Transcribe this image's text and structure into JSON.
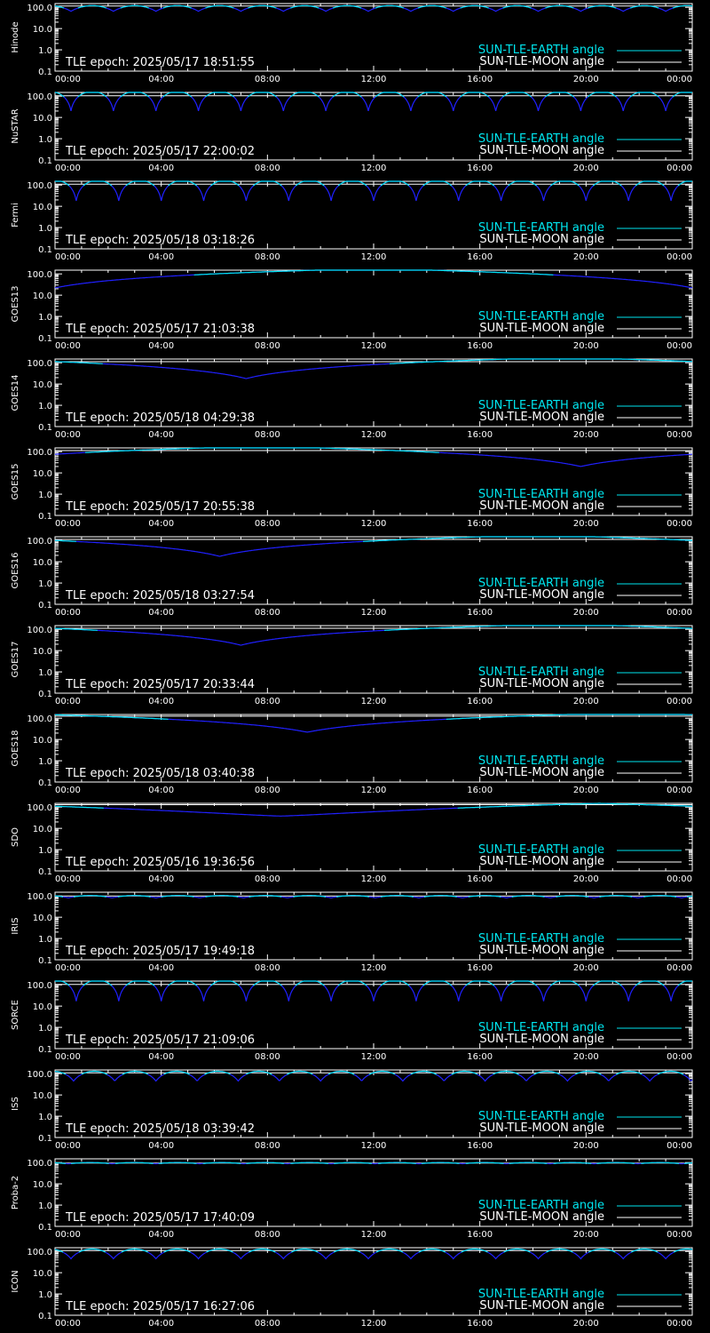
{
  "colors": {
    "background": "#000000",
    "axes": "#ffffff",
    "earth_angle": "#00e5ee",
    "moon_angle": "#ffffff",
    "dip_curve": "#2020ff"
  },
  "chart_data": [
    {
      "type": "line",
      "satellite": "Hinode",
      "epoch_label": "TLE epoch: 2025/05/17 18:51:55",
      "scale": "log",
      "ylim": [
        0.1,
        150
      ],
      "yticks": [
        "100.0",
        "10.0",
        "1.0",
        "0.1"
      ],
      "xlim": [
        0,
        24
      ],
      "xticks": [
        "00:00",
        "04:00",
        "08:00",
        "12:00",
        "16:00",
        "20:00",
        "00:00"
      ],
      "earth": {
        "kind": "orbit",
        "period_h": 1.6,
        "phase_h": 0.6,
        "max": 120,
        "min": 65
      },
      "moon": {
        "constant": 115
      },
      "legend": [
        "SUN-TLE-EARTH angle",
        "SUN-TLE-MOON angle"
      ]
    },
    {
      "type": "line",
      "satellite": "NuSTAR",
      "epoch_label": "TLE epoch: 2025/05/17 22:00:02",
      "scale": "log",
      "ylim": [
        0.1,
        150
      ],
      "yticks": [
        "100.0",
        "10.0",
        "1.0",
        "0.1"
      ],
      "xlim": [
        0,
        24
      ],
      "xticks": [
        "00:00",
        "04:00",
        "08:00",
        "12:00",
        "16:00",
        "20:00",
        "00:00"
      ],
      "earth": {
        "kind": "orbit",
        "period_h": 1.6,
        "phase_h": 0.6,
        "max": 165,
        "min": 20
      },
      "moon": {
        "constant": 105
      },
      "legend": [
        "SUN-TLE-EARTH angle",
        "SUN-TLE-MOON angle"
      ]
    },
    {
      "type": "line",
      "satellite": "Fermi",
      "epoch_label": "TLE epoch: 2025/05/18 03:18:26",
      "scale": "log",
      "ylim": [
        0.1,
        150
      ],
      "yticks": [
        "100.0",
        "10.0",
        "1.0",
        "0.1"
      ],
      "xlim": [
        0,
        24
      ],
      "xticks": [
        "00:00",
        "04:00",
        "08:00",
        "12:00",
        "16:00",
        "20:00",
        "00:00"
      ],
      "earth": {
        "kind": "orbit",
        "period_h": 1.6,
        "phase_h": 0.8,
        "max": 165,
        "min": 18
      },
      "moon": {
        "constant": 110
      },
      "legend": [
        "SUN-TLE-EARTH angle",
        "SUN-TLE-MOON angle"
      ]
    },
    {
      "type": "line",
      "satellite": "GOES13",
      "epoch_label": "TLE epoch: 2025/05/17 21:03:38",
      "scale": "log",
      "ylim": [
        0.1,
        150
      ],
      "yticks": [
        "100.0",
        "10.0",
        "1.0",
        "0.1"
      ],
      "xlim": [
        0,
        24
      ],
      "xticks": [
        "00:00",
        "04:00",
        "08:00",
        "12:00",
        "16:00",
        "20:00",
        "00:00"
      ],
      "earth": {
        "kind": "geo",
        "min_t": 24,
        "min": 22,
        "max": 178
      },
      "moon": {
        "constant": 150
      },
      "legend": [
        "SUN-TLE-EARTH angle",
        "SUN-TLE-MOON angle"
      ]
    },
    {
      "type": "line",
      "satellite": "GOES14",
      "epoch_label": "TLE epoch: 2025/05/18 04:29:38",
      "scale": "log",
      "ylim": [
        0.1,
        150
      ],
      "yticks": [
        "100.0",
        "10.0",
        "1.0",
        "0.1"
      ],
      "xlim": [
        0,
        24
      ],
      "xticks": [
        "00:00",
        "04:00",
        "08:00",
        "12:00",
        "16:00",
        "20:00",
        "00:00"
      ],
      "earth": {
        "kind": "geo",
        "min_t": 7.2,
        "min": 18,
        "max": 178
      },
      "moon": {
        "constant": 112
      },
      "legend": [
        "SUN-TLE-EARTH angle",
        "SUN-TLE-MOON angle"
      ]
    },
    {
      "type": "line",
      "satellite": "GOES15",
      "epoch_label": "TLE epoch: 2025/05/17 20:55:38",
      "scale": "log",
      "ylim": [
        0.1,
        150
      ],
      "yticks": [
        "100.0",
        "10.0",
        "1.0",
        "0.1"
      ],
      "xlim": [
        0,
        24
      ],
      "xticks": [
        "00:00",
        "04:00",
        "08:00",
        "12:00",
        "16:00",
        "20:00",
        "00:00"
      ],
      "earth": {
        "kind": "geo",
        "min_t": 19.8,
        "min": 20,
        "max": 178
      },
      "moon": {
        "constant": 112
      },
      "legend": [
        "SUN-TLE-EARTH angle",
        "SUN-TLE-MOON angle"
      ]
    },
    {
      "type": "line",
      "satellite": "GOES16",
      "epoch_label": "TLE epoch: 2025/05/18 03:27:54",
      "scale": "log",
      "ylim": [
        0.1,
        150
      ],
      "yticks": [
        "100.0",
        "10.0",
        "1.0",
        "0.1"
      ],
      "xlim": [
        0,
        24
      ],
      "xticks": [
        "00:00",
        "04:00",
        "08:00",
        "12:00",
        "16:00",
        "20:00",
        "00:00"
      ],
      "earth": {
        "kind": "geo",
        "min_t": 6.2,
        "min": 18,
        "max": 178
      },
      "moon": {
        "constant": 112
      },
      "legend": [
        "SUN-TLE-EARTH angle",
        "SUN-TLE-MOON angle"
      ]
    },
    {
      "type": "line",
      "satellite": "GOES17",
      "epoch_label": "TLE epoch: 2025/05/17 20:33:44",
      "scale": "log",
      "ylim": [
        0.1,
        150
      ],
      "yticks": [
        "100.0",
        "10.0",
        "1.0",
        "0.1"
      ],
      "xlim": [
        0,
        24
      ],
      "xticks": [
        "00:00",
        "04:00",
        "08:00",
        "12:00",
        "16:00",
        "20:00",
        "00:00"
      ],
      "earth": {
        "kind": "geo",
        "min_t": 7.0,
        "min": 18,
        "max": 178
      },
      "moon": {
        "constant": 112
      },
      "legend": [
        "SUN-TLE-EARTH angle",
        "SUN-TLE-MOON angle"
      ]
    },
    {
      "type": "line",
      "satellite": "GOES18",
      "epoch_label": "TLE epoch: 2025/05/18 03:40:38",
      "scale": "log",
      "ylim": [
        0.1,
        150
      ],
      "yticks": [
        "100.0",
        "10.0",
        "1.0",
        "0.1"
      ],
      "xlim": [
        0,
        24
      ],
      "xticks": [
        "00:00",
        "04:00",
        "08:00",
        "12:00",
        "16:00",
        "20:00",
        "00:00"
      ],
      "earth": {
        "kind": "geo",
        "min_t": 9.5,
        "min": 22,
        "max": 178
      },
      "moon": {
        "constant": 125
      },
      "legend": [
        "SUN-TLE-EARTH angle",
        "SUN-TLE-MOON angle"
      ]
    },
    {
      "type": "line",
      "satellite": "SDO",
      "epoch_label": "TLE epoch: 2025/05/16 19:36:56",
      "scale": "log",
      "ylim": [
        0.1,
        150
      ],
      "yticks": [
        "100.0",
        "10.0",
        "1.0",
        "0.1"
      ],
      "xlim": [
        0,
        24
      ],
      "xticks": [
        "00:00",
        "04:00",
        "08:00",
        "12:00",
        "16:00",
        "20:00",
        "00:00"
      ],
      "earth": {
        "kind": "smooth",
        "min_t": 8.5,
        "min": 38,
        "max": 150
      },
      "moon": {
        "constant": 130
      },
      "legend": [
        "SUN-TLE-EARTH angle",
        "SUN-TLE-MOON angle"
      ]
    },
    {
      "type": "line",
      "satellite": "IRIS",
      "epoch_label": "TLE epoch: 2025/05/17 19:49:18",
      "scale": "log",
      "ylim": [
        0.1,
        150
      ],
      "yticks": [
        "100.0",
        "10.0",
        "1.0",
        "0.1"
      ],
      "xlim": [
        0,
        24
      ],
      "xticks": [
        "00:00",
        "04:00",
        "08:00",
        "12:00",
        "16:00",
        "20:00",
        "00:00"
      ],
      "earth": {
        "kind": "orbit",
        "period_h": 1.65,
        "phase_h": 0.5,
        "max": 105,
        "min": 82
      },
      "moon": {
        "constant": 100
      },
      "legend": [
        "SUN-TLE-EARTH angle",
        "SUN-TLE-MOON angle"
      ]
    },
    {
      "type": "line",
      "satellite": "SORCE",
      "epoch_label": "TLE epoch: 2025/05/17 21:09:06",
      "scale": "log",
      "ylim": [
        0.1,
        150
      ],
      "yticks": [
        "100.0",
        "10.0",
        "1.0",
        "0.1"
      ],
      "xlim": [
        0,
        24
      ],
      "xticks": [
        "00:00",
        "04:00",
        "08:00",
        "12:00",
        "16:00",
        "20:00",
        "00:00"
      ],
      "earth": {
        "kind": "orbit",
        "period_h": 1.6,
        "phase_h": 0.8,
        "max": 165,
        "min": 17
      },
      "moon": {
        "constant": 105
      },
      "legend": [
        "SUN-TLE-EARTH angle",
        "SUN-TLE-MOON angle"
      ]
    },
    {
      "type": "line",
      "satellite": "ISS",
      "epoch_label": "TLE epoch: 2025/05/18 03:39:42",
      "scale": "log",
      "ylim": [
        0.1,
        150
      ],
      "yticks": [
        "100.0",
        "10.0",
        "1.0",
        "0.1"
      ],
      "xlim": [
        0,
        24
      ],
      "xticks": [
        "00:00",
        "04:00",
        "08:00",
        "12:00",
        "16:00",
        "20:00",
        "00:00"
      ],
      "earth": {
        "kind": "orbit",
        "period_h": 1.55,
        "phase_h": 0.7,
        "max": 130,
        "min": 45
      },
      "moon": {
        "constant": 110
      },
      "legend": [
        "SUN-TLE-EARTH angle",
        "SUN-TLE-MOON angle"
      ]
    },
    {
      "type": "line",
      "satellite": "Proba-2",
      "epoch_label": "TLE epoch: 2025/05/17 17:40:09",
      "scale": "log",
      "ylim": [
        0.1,
        150
      ],
      "yticks": [
        "100.0",
        "10.0",
        "1.0",
        "0.1"
      ],
      "xlim": [
        0,
        24
      ],
      "xticks": [
        "00:00",
        "04:00",
        "08:00",
        "12:00",
        "16:00",
        "20:00",
        "00:00"
      ],
      "earth": {
        "kind": "orbit",
        "period_h": 1.65,
        "phase_h": 0.5,
        "max": 100,
        "min": 88
      },
      "moon": {
        "constant": 95
      },
      "legend": [
        "SUN-TLE-EARTH angle",
        "SUN-TLE-MOON angle"
      ]
    },
    {
      "type": "line",
      "satellite": "ICON",
      "epoch_label": "TLE epoch: 2025/05/17 16:27:06",
      "scale": "log",
      "ylim": [
        0.1,
        150
      ],
      "yticks": [
        "100.0",
        "10.0",
        "1.0",
        "0.1"
      ],
      "xlim": [
        0,
        24
      ],
      "xticks": [
        "00:00",
        "04:00",
        "08:00",
        "12:00",
        "16:00",
        "20:00",
        "00:00"
      ],
      "earth": {
        "kind": "orbit",
        "period_h": 1.6,
        "phase_h": 0.6,
        "max": 130,
        "min": 45
      },
      "moon": {
        "constant": 110
      },
      "legend": [
        "SUN-TLE-EARTH angle",
        "SUN-TLE-MOON angle"
      ]
    }
  ]
}
